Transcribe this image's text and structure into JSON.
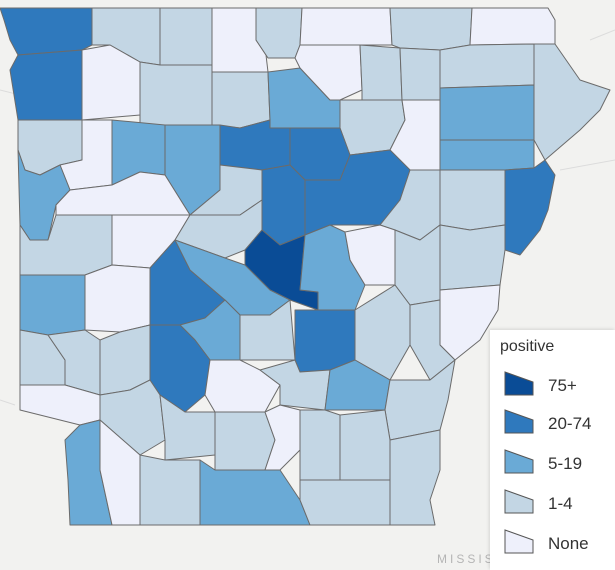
{
  "map": {
    "region": "Arkansas",
    "basemap_label": "MISSIS",
    "colors": {
      "none": "#eef0fb",
      "c1_4": "#c3d6e4",
      "c5_19": "#6aaad6",
      "c20_74": "#2f79bd",
      "c75": "#0a4c96"
    }
  },
  "legend": {
    "title": "positive",
    "items": [
      {
        "label": "75+",
        "color": "#0a4c96"
      },
      {
        "label": "20-74",
        "color": "#2f79bd"
      },
      {
        "label": "5-19",
        "color": "#6aaad6"
      },
      {
        "label": "1-4",
        "color": "#c3d6e4"
      },
      {
        "label": "None",
        "color": "#eef0fb"
      }
    ]
  }
}
